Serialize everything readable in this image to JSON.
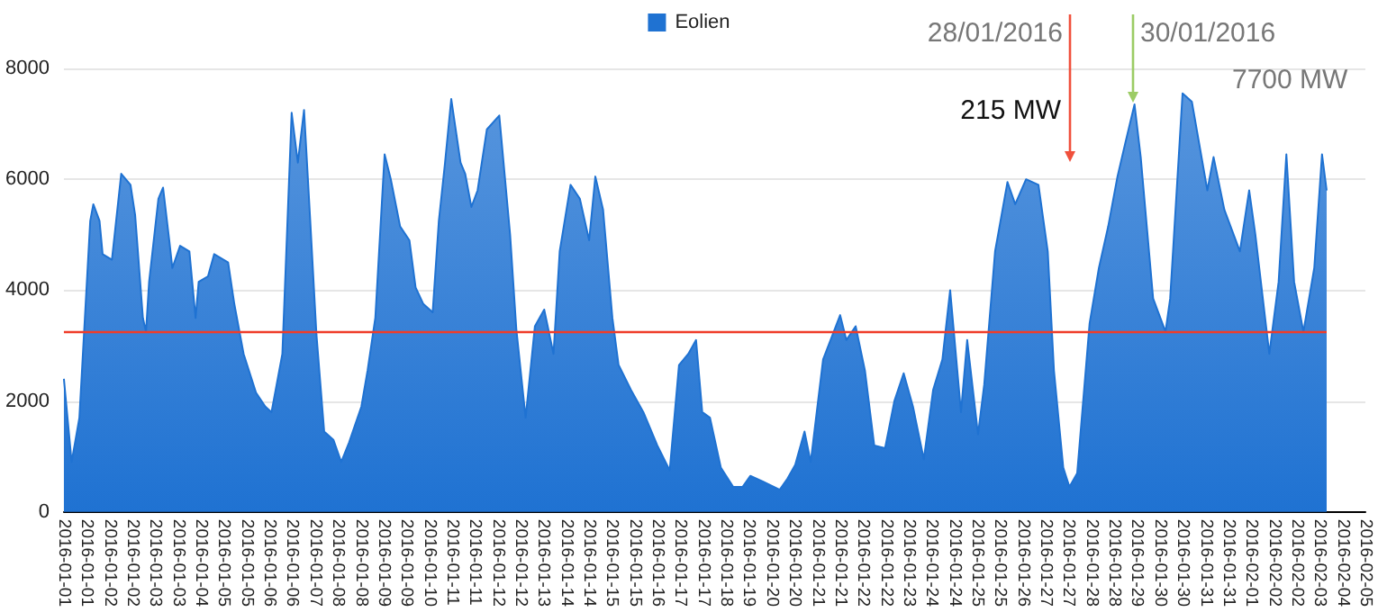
{
  "chart_data": {
    "type": "area",
    "legend": "top",
    "grid": "y",
    "marker": "none",
    "ylim": [
      0,
      8000
    ],
    "yticks": [
      0,
      2000,
      4000,
      6000,
      8000
    ],
    "xlim": [
      "2016-01-01",
      "2016-02-05"
    ],
    "xticks": [
      {
        "value": "2016-01-01T00:00",
        "label": "2016-01-01"
      },
      {
        "value": "2016-01-01T14:44",
        "label": "2016-01-01"
      },
      {
        "value": "2016-01-02T05:28",
        "label": "2016-01-02"
      },
      {
        "value": "2016-01-02T20:13",
        "label": "2016-01-02"
      },
      {
        "value": "2016-01-03T10:57",
        "label": "2016-01-03"
      },
      {
        "value": "2016-01-04T01:41",
        "label": "2016-01-03"
      },
      {
        "value": "2016-01-04T16:25",
        "label": "2016-01-04"
      },
      {
        "value": "2016-01-05T07:09",
        "label": "2016-01-05"
      },
      {
        "value": "2016-01-05T21:54",
        "label": "2016-01-05"
      },
      {
        "value": "2016-01-06T12:38",
        "label": "2016-01-06"
      },
      {
        "value": "2016-01-07T03:22",
        "label": "2016-01-06"
      },
      {
        "value": "2016-01-07T18:06",
        "label": "2016-01-07"
      },
      {
        "value": "2016-01-08T08:51",
        "label": "2016-01-08"
      },
      {
        "value": "2016-01-08T23:35",
        "label": "2016-01-08"
      },
      {
        "value": "2016-01-09T14:19",
        "label": "2016-01-09"
      },
      {
        "value": "2016-01-10T05:03",
        "label": "2016-01-09"
      },
      {
        "value": "2016-01-10T19:47",
        "label": "2016-01-10"
      },
      {
        "value": "2016-01-11T10:32",
        "label": "2016-01-11"
      },
      {
        "value": "2016-01-12T01:16",
        "label": "2016-01-11"
      },
      {
        "value": "2016-01-12T16:00",
        "label": "2016-01-12"
      },
      {
        "value": "2016-01-13T06:44",
        "label": "2016-01-12"
      },
      {
        "value": "2016-01-13T21:28",
        "label": "2016-01-13"
      },
      {
        "value": "2016-01-14T12:13",
        "label": "2016-01-14"
      },
      {
        "value": "2016-01-15T02:57",
        "label": "2016-01-14"
      },
      {
        "value": "2016-01-15T17:41",
        "label": "2016-01-15"
      },
      {
        "value": "2016-01-16T08:25",
        "label": "2016-01-15"
      },
      {
        "value": "2016-01-16T23:09",
        "label": "2016-01-16"
      },
      {
        "value": "2016-01-17T13:54",
        "label": "2016-01-17"
      },
      {
        "value": "2016-01-18T04:38",
        "label": "2016-01-17"
      },
      {
        "value": "2016-01-18T19:22",
        "label": "2016-01-18"
      },
      {
        "value": "2016-01-19T10:06",
        "label": "2016-01-19"
      },
      {
        "value": "2016-01-20T00:51",
        "label": "2016-01-20"
      },
      {
        "value": "2016-01-20T15:35",
        "label": "2016-01-20"
      },
      {
        "value": "2016-01-21T06:19",
        "label": "2016-01-21"
      },
      {
        "value": "2016-01-21T21:03",
        "label": "2016-01-21"
      },
      {
        "value": "2016-01-22T11:47",
        "label": "2016-01-22"
      },
      {
        "value": "2016-01-23T02:32",
        "label": "2016-01-22"
      },
      {
        "value": "2016-01-23T17:16",
        "label": "2016-01-23"
      },
      {
        "value": "2016-01-24T08:00",
        "label": "2016-01-24"
      },
      {
        "value": "2016-01-24T22:44",
        "label": "2016-01-24"
      },
      {
        "value": "2016-01-25T13:28",
        "label": "2016-01-25"
      },
      {
        "value": "2016-01-26T04:13",
        "label": "2016-01-25"
      },
      {
        "value": "2016-01-26T18:57",
        "label": "2016-01-26"
      },
      {
        "value": "2016-01-27T09:41",
        "label": "2016-01-27"
      },
      {
        "value": "2016-01-28T00:25",
        "label": "2016-01-27"
      },
      {
        "value": "2016-01-28T15:09",
        "label": "2016-01-28"
      },
      {
        "value": "2016-01-29T05:54",
        "label": "2016-01-28"
      },
      {
        "value": "2016-01-29T20:38",
        "label": "2016-01-29"
      },
      {
        "value": "2016-01-30T11:22",
        "label": "2016-01-30"
      },
      {
        "value": "2016-01-31T02:06",
        "label": "2016-01-30"
      },
      {
        "value": "2016-01-31T16:51",
        "label": "2016-01-31"
      },
      {
        "value": "2016-02-01T07:35",
        "label": "2016-01-31"
      },
      {
        "value": "2016-02-01T22:19",
        "label": "2016-02-01"
      },
      {
        "value": "2016-02-02T13:03",
        "label": "2016-02-02"
      },
      {
        "value": "2016-02-03T03:47",
        "label": "2016-02-02"
      },
      {
        "value": "2016-02-03T18:32",
        "label": "2016-02-03"
      },
      {
        "value": "2016-02-04T09:16",
        "label": "2016-02-04"
      },
      {
        "value": "2016-02-05T00:00",
        "label": "2016-02-05"
      }
    ],
    "series": [
      {
        "name": "Eolien",
        "color": "#1f72d2",
        "x": [
          "2016-01-01T00:00",
          "2016-01-01T05:00",
          "2016-01-01T10:00",
          "2016-01-01T17:00",
          "2016-01-01T19:00",
          "2016-01-01T23:00",
          "2016-01-02T01:00",
          "2016-01-02T07:00",
          "2016-01-02T13:00",
          "2016-01-02T19:00",
          "2016-01-02T22:00",
          "2016-01-03T03:00",
          "2016-01-03T05:00",
          "2016-01-03T07:00",
          "2016-01-03T13:00",
          "2016-01-03T16:00",
          "2016-01-03T20:00",
          "2016-01-03T22:00",
          "2016-01-04T03:00",
          "2016-01-04T09:00",
          "2016-01-04T13:00",
          "2016-01-04T15:00",
          "2016-01-04T21:00",
          "2016-01-05T01:00",
          "2016-01-05T10:00",
          "2016-01-05T14:00",
          "2016-01-05T20:00",
          "2016-01-06T04:00",
          "2016-01-06T10:00",
          "2016-01-06T14:00",
          "2016-01-06T21:00",
          "2016-01-07T03:00",
          "2016-01-07T07:00",
          "2016-01-07T11:00",
          "2016-01-07T15:00",
          "2016-01-07T19:00",
          "2016-01-08T00:00",
          "2016-01-08T06:00",
          "2016-01-08T11:00",
          "2016-01-08T16:00",
          "2016-01-09T00:00",
          "2016-01-09T04:00",
          "2016-01-09T09:00",
          "2016-01-09T15:00",
          "2016-01-09T19:00",
          "2016-01-10T01:00",
          "2016-01-10T07:00",
          "2016-01-10T11:00",
          "2016-01-10T16:00",
          "2016-01-10T22:00",
          "2016-01-11T02:00",
          "2016-01-11T06:00",
          "2016-01-11T10:00",
          "2016-01-11T16:00",
          "2016-01-11T19:00",
          "2016-01-11T23:00",
          "2016-01-12T03:00",
          "2016-01-12T09:00",
          "2016-01-12T17:00",
          "2016-01-13T00:00",
          "2016-01-13T04:00",
          "2016-01-13T10:00",
          "2016-01-13T16:00",
          "2016-01-13T22:00",
          "2016-01-14T04:00",
          "2016-01-14T08:00",
          "2016-01-14T15:00",
          "2016-01-14T21:00",
          "2016-01-15T03:00",
          "2016-01-15T07:00",
          "2016-01-15T12:00",
          "2016-01-15T18:00",
          "2016-01-15T22:00",
          "2016-01-16T06:00",
          "2016-01-16T14:00",
          "2016-01-16T23:00",
          "2016-01-17T07:00",
          "2016-01-17T13:00",
          "2016-01-17T19:00",
          "2016-01-18T00:00",
          "2016-01-18T04:00",
          "2016-01-18T09:00",
          "2016-01-18T16:00",
          "2016-01-19T00:00",
          "2016-01-19T06:00",
          "2016-01-19T11:00",
          "2016-01-19T19:00",
          "2016-01-20T06:00",
          "2016-01-20T11:00",
          "2016-01-20T16:00",
          "2016-01-20T22:00",
          "2016-01-21T02:00",
          "2016-01-21T10:00",
          "2016-01-21T21:00",
          "2016-01-22T01:00",
          "2016-01-22T07:00",
          "2016-01-22T13:00",
          "2016-01-22T19:00",
          "2016-01-23T02:00",
          "2016-01-23T08:00",
          "2016-01-23T14:00",
          "2016-01-23T20:00",
          "2016-01-24T03:00",
          "2016-01-24T09:00",
          "2016-01-24T15:00",
          "2016-01-24T20:00",
          "2016-01-25T03:00",
          "2016-01-25T07:00",
          "2016-01-25T14:00",
          "2016-01-25T18:00",
          "2016-01-26T01:00",
          "2016-01-26T09:00",
          "2016-01-26T14:00",
          "2016-01-26T21:00",
          "2016-01-27T05:00",
          "2016-01-27T11:00",
          "2016-01-27T15:00",
          "2016-01-27T21:00",
          "2016-01-28T01:00",
          "2016-01-28T06:00",
          "2016-01-28T14:00",
          "2016-01-28T20:00",
          "2016-01-29T02:00",
          "2016-01-29T08:00",
          "2016-01-29T13:00",
          "2016-01-29T19:00",
          "2016-01-29T23:00",
          "2016-01-30T07:00",
          "2016-01-30T15:00",
          "2016-01-30T18:00",
          "2016-01-31T02:00",
          "2016-01-31T08:00",
          "2016-01-31T18:00",
          "2016-01-31T22:00",
          "2016-02-01T05:00",
          "2016-02-01T15:00",
          "2016-02-01T21:00",
          "2016-02-02T01:00",
          "2016-02-02T10:00",
          "2016-02-02T16:00",
          "2016-02-02T21:00",
          "2016-02-03T02:00",
          "2016-02-03T08:00",
          "2016-02-03T15:00",
          "2016-02-03T20:00",
          "2016-02-03T23:00"
        ],
        "values": [
          2400,
          900,
          1700,
          5250,
          5550,
          5250,
          4650,
          4550,
          6100,
          5900,
          5350,
          3500,
          3250,
          4150,
          5650,
          5850,
          4900,
          4400,
          4800,
          4700,
          3500,
          4150,
          4250,
          4650,
          4500,
          3750,
          2850,
          2150,
          1900,
          1800,
          2850,
          7200,
          6300,
          7250,
          5250,
          3200,
          1450,
          1300,
          900,
          1250,
          1900,
          2550,
          3500,
          6450,
          6000,
          5150,
          4900,
          4050,
          3750,
          3600,
          5250,
          6300,
          7450,
          6300,
          6100,
          5500,
          5800,
          6900,
          7150,
          5000,
          3300,
          1700,
          3350,
          3650,
          2850,
          4700,
          5900,
          5650,
          4900,
          6050,
          5450,
          3500,
          2650,
          2200,
          1800,
          1200,
          750,
          2650,
          2850,
          3100,
          1800,
          1700,
          800,
          450,
          450,
          650,
          550,
          400,
          600,
          850,
          1450,
          900,
          2750,
          3550,
          3100,
          3350,
          2550,
          1200,
          1150,
          2000,
          2500,
          1900,
          950,
          2200,
          2750,
          4000,
          1800,
          3100,
          1400,
          2300,
          4700,
          5950,
          5550,
          6000,
          5900,
          4700,
          2550,
          800,
          450,
          700,
          3400,
          4400,
          5150,
          6050,
          6650,
          7350,
          6400,
          3850,
          3250,
          3850,
          7550,
          7400,
          5800,
          6400,
          5450,
          4700,
          5800,
          5000,
          2850,
          4150,
          6450,
          4150,
          3250,
          4400,
          6450,
          5800
        ]
      }
    ],
    "ref_lines": [
      {
        "axis": "y",
        "value": 3250,
        "color": "#f03c28"
      }
    ],
    "annotations": [
      "28/01/2016",
      "30/01/2016",
      "215 MW",
      "7700 MW"
    ]
  }
}
